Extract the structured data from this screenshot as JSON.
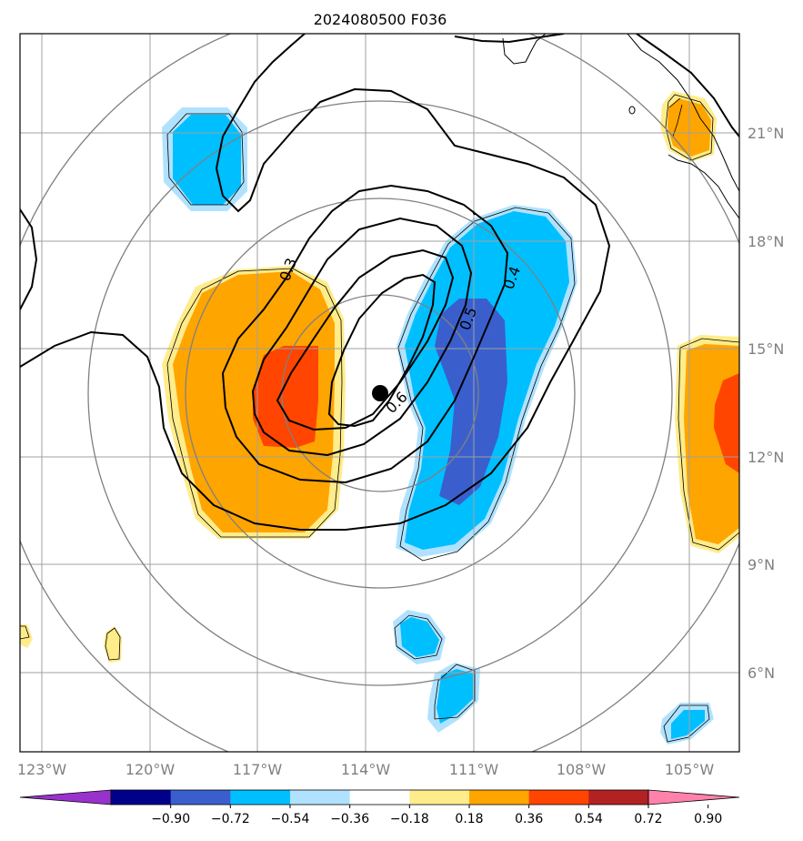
{
  "title": "2024080500 F036",
  "x_ticks": [
    "123°W",
    "120°W",
    "117°W",
    "114°W",
    "111°W",
    "108°W",
    "105°W"
  ],
  "y_ticks": [
    "21°N",
    "18°N",
    "15°N",
    "12°N",
    "9°N",
    "6°N"
  ],
  "contour_labels": [
    "0.3",
    "0.4",
    "0.5",
    "0.6"
  ],
  "colorbar": {
    "ticks": [
      "−0.90",
      "−0.72",
      "−0.54",
      "−0.36",
      "−0.18",
      "0.18",
      "0.36",
      "0.54",
      "0.72",
      "0.90"
    ],
    "colors": [
      "#9932cc",
      "#00008b",
      "#3a5fcd",
      "#00bfff",
      "#b0e2ff",
      "#ffffff",
      "#ffec8b",
      "#ffa500",
      "#ff4500",
      "#b22222",
      "#ff82ab"
    ]
  },
  "fills": {
    "dark_blue": "#3a5fcd",
    "mid_blue": "#00bfff",
    "light_blue": "#b0e2ff",
    "light_yellow": "#ffec8b",
    "orange": "#ffa500",
    "red_orange": "#ff4500"
  }
}
